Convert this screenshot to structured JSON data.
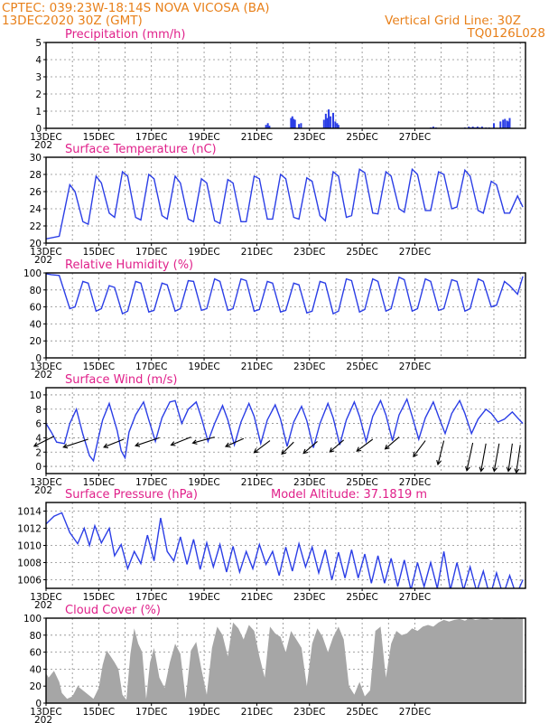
{
  "header": {
    "line1_left": "CPTEC:   039:23W-18:14S   NOVA VICOSA (BA)",
    "line2_left": "13DEC2020 30Z (GMT)",
    "line1_right": "Vertical Grid Line: 30Z",
    "line2_right": "TQ0126L028"
  },
  "x_axis": {
    "tick_labels": [
      "13DEC",
      "15DEC",
      "17DEC",
      "19DEC",
      "21DEC",
      "23DEC",
      "25DEC",
      "27DEC"
    ],
    "year_label": "202"
  },
  "colors": {
    "line": "#2b3ee6",
    "cloud": "#a6a6a6",
    "title": "#e0208a",
    "header": "#e8801a"
  },
  "chart_data": [
    {
      "id": "precipitation",
      "type": "bar",
      "title": "Precipitation (mm/h)",
      "ylim": [
        0,
        5
      ],
      "yticks": [
        0,
        1,
        2,
        3,
        4,
        5
      ],
      "x_unit": "days since 13DEC 00Z",
      "x": [
        8.35,
        8.42,
        8.48,
        9.3,
        9.35,
        9.4,
        9.45,
        9.6,
        9.68,
        10.55,
        10.62,
        10.68,
        10.73,
        10.8,
        10.9,
        10.98,
        11.05,
        11.1,
        14.6,
        14.7,
        14.8,
        15.9,
        16.05,
        16.12,
        16.2,
        16.25,
        16.32,
        16.38,
        16.45,
        16.55,
        16.7,
        16.82,
        17.0,
        17.25,
        17.35,
        17.42,
        17.5,
        17.55,
        17.6
      ],
      "values": [
        0.2,
        0.3,
        0.15,
        0.6,
        0.7,
        0.55,
        0.5,
        0.25,
        0.3,
        0.5,
        0.85,
        0.6,
        1.1,
        0.7,
        0.9,
        0.4,
        0.3,
        0.2,
        0.05,
        0.1,
        0.05,
        0.05,
        0.1,
        0.05,
        0.1,
        0.05,
        0.05,
        0.1,
        0.05,
        0.1,
        0.05,
        0.05,
        0.3,
        0.4,
        0.5,
        0.55,
        0.45,
        0.4,
        0.6
      ]
    },
    {
      "id": "temperature",
      "type": "line",
      "title": "Surface Temperature (nC)",
      "ylim": [
        20,
        30
      ],
      "yticks": [
        20,
        22,
        24,
        26,
        28,
        30
      ],
      "x_unit": "days since 13DEC 00Z",
      "x": [
        0,
        0.5,
        0.9,
        1.1,
        1.4,
        1.6,
        1.9,
        2.1,
        2.4,
        2.6,
        2.9,
        3.1,
        3.4,
        3.6,
        3.9,
        4.1,
        4.4,
        4.6,
        4.9,
        5.1,
        5.4,
        5.6,
        5.9,
        6.1,
        6.4,
        6.6,
        6.9,
        7.1,
        7.4,
        7.6,
        7.9,
        8.1,
        8.4,
        8.6,
        8.9,
        9.1,
        9.4,
        9.6,
        9.9,
        10.1,
        10.4,
        10.6,
        10.9,
        11.1,
        11.4,
        11.6,
        11.9,
        12.1,
        12.4,
        12.6,
        12.9,
        13.1,
        13.4,
        13.6,
        13.9,
        14.1,
        14.4,
        14.6,
        14.9,
        15.1,
        15.4,
        15.6,
        15.9,
        16.1,
        16.4,
        16.6,
        16.9,
        17.1,
        17.4,
        17.6,
        17.9,
        18.1
      ],
      "values": [
        20.5,
        20.8,
        26.8,
        26.0,
        22.5,
        22.2,
        27.8,
        27.0,
        23.5,
        23.0,
        28.3,
        27.8,
        23.0,
        22.7,
        28.0,
        27.5,
        23.2,
        22.8,
        27.8,
        27.0,
        22.8,
        22.5,
        27.5,
        27.0,
        22.6,
        22.3,
        27.4,
        27.0,
        22.5,
        22.5,
        27.8,
        27.5,
        22.8,
        22.8,
        28.0,
        27.5,
        23.0,
        22.8,
        27.6,
        27.2,
        23.2,
        22.6,
        28.3,
        27.8,
        23.0,
        23.2,
        28.6,
        28.2,
        23.5,
        23.4,
        28.3,
        27.8,
        24.0,
        23.6,
        28.6,
        28.0,
        23.8,
        23.8,
        28.3,
        28.0,
        24.0,
        24.2,
        28.5,
        27.8,
        23.8,
        23.5,
        27.2,
        26.8,
        23.5,
        23.5,
        25.5,
        24.2
      ]
    },
    {
      "id": "humidity",
      "type": "line",
      "title": "Relative Humidity (%)",
      "ylim": [
        0,
        100
      ],
      "yticks": [
        0,
        20,
        40,
        60,
        80,
        100
      ],
      "x_unit": "days since 13DEC 00Z",
      "x": [
        0,
        0.2,
        0.5,
        0.9,
        1.1,
        1.4,
        1.6,
        1.9,
        2.1,
        2.4,
        2.6,
        2.9,
        3.1,
        3.4,
        3.6,
        3.9,
        4.1,
        4.4,
        4.6,
        4.9,
        5.1,
        5.4,
        5.6,
        5.9,
        6.1,
        6.4,
        6.6,
        6.9,
        7.1,
        7.4,
        7.6,
        7.9,
        8.1,
        8.4,
        8.6,
        8.9,
        9.1,
        9.4,
        9.6,
        9.9,
        10.1,
        10.4,
        10.6,
        10.9,
        11.1,
        11.4,
        11.6,
        11.9,
        12.1,
        12.4,
        12.6,
        12.9,
        13.1,
        13.4,
        13.6,
        13.9,
        14.1,
        14.4,
        14.6,
        14.9,
        15.1,
        15.4,
        15.6,
        15.9,
        16.1,
        16.4,
        16.6,
        16.9,
        17.1,
        17.4,
        17.6,
        17.9,
        18.1
      ],
      "values": [
        99,
        98,
        97,
        58,
        60,
        90,
        88,
        55,
        58,
        85,
        83,
        52,
        55,
        90,
        88,
        54,
        56,
        88,
        86,
        55,
        58,
        91,
        90,
        56,
        58,
        93,
        90,
        56,
        58,
        93,
        91,
        55,
        57,
        90,
        88,
        54,
        56,
        88,
        86,
        53,
        55,
        90,
        88,
        52,
        55,
        93,
        91,
        54,
        57,
        93,
        90,
        55,
        58,
        95,
        92,
        55,
        58,
        93,
        90,
        56,
        58,
        92,
        90,
        55,
        58,
        93,
        90,
        60,
        62,
        90,
        85,
        75,
        96
      ]
    },
    {
      "id": "wind",
      "type": "line",
      "title": "Surface Wind (m/s)",
      "ylim": [
        -1,
        11
      ],
      "yticks": [
        0,
        2,
        4,
        6,
        8,
        10
      ],
      "x_unit": "days since 13DEC 00Z",
      "x": [
        0,
        0.2,
        0.4,
        0.7,
        0.9,
        1.15,
        1.4,
        1.65,
        1.8,
        2.0,
        2.15,
        2.4,
        2.7,
        2.85,
        3.0,
        3.15,
        3.4,
        3.7,
        3.9,
        4.15,
        4.4,
        4.7,
        4.9,
        5.15,
        5.4,
        5.7,
        5.9,
        6.15,
        6.4,
        6.7,
        6.9,
        7.15,
        7.4,
        7.7,
        7.9,
        8.15,
        8.4,
        8.7,
        8.9,
        9.15,
        9.4,
        9.7,
        9.9,
        10.15,
        10.4,
        10.7,
        10.9,
        11.15,
        11.4,
        11.7,
        11.9,
        12.15,
        12.4,
        12.7,
        12.9,
        13.15,
        13.4,
        13.7,
        13.9,
        14.15,
        14.4,
        14.7,
        14.9,
        15.15,
        15.4,
        15.7,
        15.9,
        16.15,
        16.4,
        16.7,
        16.9,
        17.15,
        17.4,
        17.7,
        17.9,
        18.1
      ],
      "values": [
        6.0,
        4.8,
        3.4,
        3.2,
        6.0,
        8.0,
        4.5,
        1.5,
        0.8,
        4.2,
        6.5,
        8.8,
        5.0,
        2.2,
        1.2,
        4.8,
        7.2,
        9.0,
        6.5,
        3.5,
        6.8,
        9.0,
        9.2,
        6.0,
        8.0,
        9.0,
        6.8,
        3.5,
        6.0,
        8.5,
        6.5,
        3.0,
        6.2,
        8.8,
        7.0,
        3.2,
        6.5,
        8.6,
        6.6,
        2.8,
        6.2,
        8.4,
        6.4,
        2.6,
        6.0,
        8.8,
        6.8,
        3.0,
        6.5,
        9.0,
        7.0,
        3.5,
        7.0,
        9.2,
        7.2,
        3.6,
        7.2,
        9.4,
        7.0,
        3.8,
        6.8,
        9.0,
        7.0,
        4.6,
        7.4,
        9.2,
        7.4,
        4.6,
        6.6,
        8.0,
        7.4,
        6.2,
        6.6,
        7.6,
        6.8,
        6.0
      ],
      "arrows_x": [
        0.3,
        1.6,
        2.95,
        4.3,
        5.5,
        6.4,
        7.5,
        8.5,
        9.4,
        10.3,
        11.3,
        12.4,
        13.4,
        14.4,
        15.1,
        16.2,
        16.7,
        17.2,
        17.7,
        18.0
      ],
      "arrows_y": [
        4.2,
        3.8,
        3.8,
        4.0,
        4.1,
        4.1,
        3.9,
        3.6,
        3.4,
        3.5,
        3.7,
        3.8,
        4.1,
        3.6,
        3.6,
        3.3,
        3.2,
        3.2,
        3.2,
        3.0
      ],
      "arrows_dx": [
        -1.0,
        -1.25,
        -1.0,
        -1.2,
        -1.0,
        -1.1,
        -0.9,
        -0.8,
        -0.6,
        -0.7,
        -0.7,
        -0.8,
        -0.7,
        -0.6,
        -0.3,
        -0.3,
        -0.25,
        -0.25,
        -0.2,
        -0.2
      ],
      "arrows_dy": [
        -0.5,
        -0.4,
        -0.4,
        -0.4,
        -0.4,
        -0.3,
        -0.4,
        -0.6,
        -0.6,
        -0.6,
        -0.6,
        -0.6,
        -0.6,
        -0.8,
        -1.2,
        -1.4,
        -1.4,
        -1.4,
        -1.4,
        -1.4
      ]
    },
    {
      "id": "pressure",
      "type": "line",
      "title": "Surface Pressure (hPa)",
      "annotation": "Model Altitude: 37.1819  m",
      "ylim": [
        1005,
        1015
      ],
      "yticks": [
        1006,
        1008,
        1010,
        1012,
        1014
      ],
      "x_unit": "days since 13DEC 00Z",
      "x": [
        0,
        0.3,
        0.6,
        0.9,
        1.2,
        1.45,
        1.65,
        1.85,
        2.1,
        2.4,
        2.6,
        2.85,
        3.1,
        3.35,
        3.6,
        3.85,
        4.1,
        4.35,
        4.6,
        4.85,
        5.1,
        5.35,
        5.6,
        5.85,
        6.1,
        6.35,
        6.6,
        6.85,
        7.1,
        7.35,
        7.6,
        7.85,
        8.1,
        8.35,
        8.6,
        8.85,
        9.1,
        9.35,
        9.6,
        9.85,
        10.1,
        10.35,
        10.6,
        10.85,
        11.1,
        11.35,
        11.6,
        11.85,
        12.1,
        12.35,
        12.6,
        12.85,
        13.1,
        13.35,
        13.6,
        13.85,
        14.1,
        14.35,
        14.6,
        14.85,
        15.1,
        15.35,
        15.6,
        15.85,
        16.1,
        16.35,
        16.6,
        16.85,
        17.1,
        17.35,
        17.6,
        17.85,
        18.1
      ],
      "values": [
        1012.5,
        1013.4,
        1013.8,
        1011.5,
        1010.2,
        1012.0,
        1010.0,
        1012.3,
        1010.3,
        1012.0,
        1008.8,
        1010.1,
        1007.3,
        1009.3,
        1007.9,
        1011.2,
        1008.2,
        1013.2,
        1009.3,
        1008.2,
        1011.0,
        1007.8,
        1010.7,
        1007.2,
        1010.3,
        1007.5,
        1010.1,
        1006.9,
        1009.9,
        1006.9,
        1009.3,
        1007.3,
        1010.1,
        1007.8,
        1009.3,
        1006.5,
        1009.8,
        1007.0,
        1010.2,
        1007.5,
        1009.8,
        1006.8,
        1009.5,
        1006.0,
        1009.2,
        1006.2,
        1009.5,
        1006.2,
        1009.0,
        1005.6,
        1008.8,
        1005.6,
        1008.5,
        1005.2,
        1008.3,
        1004.8,
        1008.0,
        1005.2,
        1008.0,
        1005.0,
        1009.3,
        1004.8,
        1008.0,
        1004.8,
        1007.5,
        1004.6,
        1007.0,
        1004.0,
        1006.8,
        1004.2,
        1006.5,
        1004.2,
        1006.0
      ]
    },
    {
      "id": "cloud",
      "type": "area",
      "title": "Cloud Cover (%)",
      "ylim": [
        0,
        100
      ],
      "yticks": [
        0,
        20,
        40,
        60,
        80,
        100
      ],
      "x_unit": "days since 13DEC 00Z",
      "x": [
        0,
        0.1,
        0.3,
        0.5,
        0.6,
        0.8,
        1.0,
        1.2,
        1.4,
        1.6,
        1.8,
        2.0,
        2.15,
        2.3,
        2.45,
        2.6,
        2.75,
        2.9,
        3.05,
        3.2,
        3.35,
        3.5,
        3.65,
        3.8,
        3.95,
        4.1,
        4.3,
        4.5,
        4.7,
        4.9,
        5.1,
        5.3,
        5.5,
        5.7,
        5.9,
        6.1,
        6.3,
        6.5,
        6.7,
        6.9,
        7.1,
        7.3,
        7.5,
        7.7,
        7.9,
        8.1,
        8.3,
        8.5,
        8.7,
        8.9,
        9.1,
        9.3,
        9.5,
        9.7,
        9.9,
        10.1,
        10.3,
        10.5,
        10.7,
        10.9,
        11.1,
        11.3,
        11.5,
        11.7,
        11.9,
        12.1,
        12.3,
        12.5,
        12.7,
        12.9,
        13.1,
        13.3,
        13.5,
        13.7,
        13.9,
        14.1,
        14.3,
        14.5,
        14.7,
        14.9,
        15.1,
        15.3,
        15.5,
        15.7,
        15.9,
        16.1,
        16.3,
        16.5,
        16.7,
        16.9,
        17.1,
        17.3,
        17.5,
        17.7,
        17.9,
        18.1
      ],
      "values": [
        35,
        30,
        38,
        25,
        12,
        5,
        8,
        20,
        15,
        10,
        5,
        18,
        45,
        62,
        55,
        48,
        40,
        10,
        4,
        58,
        88,
        70,
        60,
        5,
        48,
        65,
        30,
        18,
        48,
        70,
        58,
        5,
        62,
        72,
        40,
        10,
        65,
        90,
        80,
        55,
        95,
        88,
        75,
        92,
        85,
        55,
        30,
        90,
        82,
        78,
        60,
        85,
        75,
        65,
        20,
        70,
        88,
        78,
        60,
        78,
        90,
        75,
        20,
        10,
        25,
        8,
        15,
        85,
        90,
        30,
        70,
        85,
        80,
        82,
        88,
        85,
        90,
        92,
        90,
        95,
        98,
        96,
        98,
        99,
        97,
        100,
        98,
        99,
        100,
        98,
        100,
        99,
        100,
        100,
        99,
        100
      ]
    }
  ]
}
